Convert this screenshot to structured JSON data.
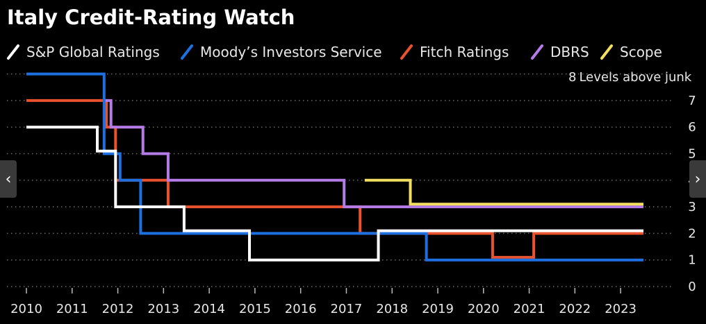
{
  "chart_data": {
    "type": "line",
    "title": "Italy Credit-Rating Watch",
    "ylabel": "Levels above junk",
    "ylim": [
      0,
      8
    ],
    "xlim": [
      2010,
      2023.5
    ],
    "y_ticks": [
      0,
      1,
      2,
      3,
      4,
      5,
      6,
      7,
      8
    ],
    "x_ticks": [
      2010,
      2011,
      2012,
      2013,
      2014,
      2015,
      2016,
      2017,
      2018,
      2019,
      2020,
      2021,
      2022,
      2023
    ],
    "grid": true,
    "legend_position": "top",
    "series": [
      {
        "name": "S&P Global Ratings",
        "color": "#ffffff",
        "shape": "step",
        "points": [
          [
            2010,
            6
          ],
          [
            2011.55,
            6
          ],
          [
            2011.55,
            5.1
          ],
          [
            2011.95,
            5.1
          ],
          [
            2011.95,
            3
          ],
          [
            2013.45,
            3
          ],
          [
            2013.45,
            2.1
          ],
          [
            2014.88,
            2.1
          ],
          [
            2014.88,
            1
          ],
          [
            2017.7,
            1
          ],
          [
            2017.7,
            2.1
          ],
          [
            2023.5,
            2.1
          ]
        ]
      },
      {
        "name": "Moody’s Investors Service",
        "color": "#1e6fe0",
        "shape": "step",
        "points": [
          [
            2010,
            8
          ],
          [
            2011.7,
            8
          ],
          [
            2011.7,
            5
          ],
          [
            2012.05,
            5
          ],
          [
            2012.05,
            4
          ],
          [
            2012.5,
            4
          ],
          [
            2012.5,
            2
          ],
          [
            2018.75,
            2
          ],
          [
            2018.75,
            1
          ],
          [
            2023.5,
            1
          ]
        ]
      },
      {
        "name": "Fitch Ratings",
        "color": "#e8522e",
        "shape": "step",
        "points": [
          [
            2010,
            7
          ],
          [
            2011.75,
            7
          ],
          [
            2011.75,
            6
          ],
          [
            2011.95,
            6
          ],
          [
            2011.95,
            4
          ],
          [
            2013.1,
            4
          ],
          [
            2013.1,
            3
          ],
          [
            2017.3,
            3
          ],
          [
            2017.3,
            2
          ],
          [
            2020.2,
            2
          ],
          [
            2020.2,
            1.1
          ],
          [
            2021.1,
            1.1
          ],
          [
            2021.1,
            2
          ],
          [
            2023.5,
            2
          ]
        ]
      },
      {
        "name": "DBRS",
        "color": "#b57ce8",
        "shape": "step",
        "points": [
          [
            2011.7,
            7
          ],
          [
            2011.85,
            7
          ],
          [
            2011.85,
            6
          ],
          [
            2012.55,
            6
          ],
          [
            2012.55,
            5
          ],
          [
            2013.1,
            5
          ],
          [
            2013.1,
            4
          ],
          [
            2016.95,
            4
          ],
          [
            2016.95,
            3
          ],
          [
            2023.5,
            3
          ]
        ]
      },
      {
        "name": "Scope",
        "color": "#f2df62",
        "shape": "step",
        "points": [
          [
            2017.4,
            4
          ],
          [
            2018.4,
            4
          ],
          [
            2018.4,
            3.1
          ],
          [
            2023.5,
            3.1
          ]
        ]
      }
    ]
  },
  "nav": {
    "prev": "‹",
    "next": "›"
  }
}
